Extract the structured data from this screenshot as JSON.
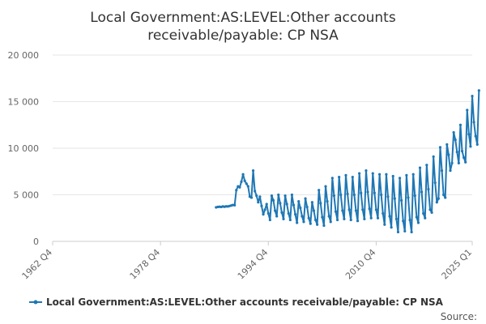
{
  "chart_data": {
    "type": "line",
    "title_lines": [
      "Local Government:AS:LEVEL:Other accounts",
      "receivable/payable: CP NSA"
    ],
    "xlabel": "",
    "ylabel": "",
    "x_tick_labels": [
      "1962 Q4",
      "1978 Q4",
      "1994 Q4",
      "2010 Q4",
      "2025 Q1"
    ],
    "y_tick_labels": [
      "0",
      "5 000",
      "10 000",
      "15 000",
      "20 000"
    ],
    "ylim": [
      0,
      20000
    ],
    "xlim": [
      "1962 Q4",
      "2025 Q1"
    ],
    "grid": "horizontal",
    "legend_position": "bottom",
    "colors": {
      "series": "#1f77b4",
      "grid": "#e6e6e6",
      "axis": "#cccccc"
    },
    "source_label": "Source:",
    "series": [
      {
        "name": "Local Government:AS:LEVEL:Other accounts receivable/payable: CP NSA",
        "points": [
          [
            "1987 Q1",
            3650
          ],
          [
            "1987 Q2",
            3700
          ],
          [
            "1987 Q3",
            3720
          ],
          [
            "1987 Q4",
            3700
          ],
          [
            "1988 Q1",
            3750
          ],
          [
            "1988 Q2",
            3720
          ],
          [
            "1988 Q3",
            3760
          ],
          [
            "1988 Q4",
            3750
          ],
          [
            "1989 Q1",
            3800
          ],
          [
            "1989 Q2",
            3850
          ],
          [
            "1989 Q3",
            3900
          ],
          [
            "1989 Q4",
            3880
          ],
          [
            "1990 Q1",
            5500
          ],
          [
            "1990 Q2",
            5900
          ],
          [
            "1990 Q3",
            5800
          ],
          [
            "1990 Q4",
            6400
          ],
          [
            "1991 Q1",
            7200
          ],
          [
            "1991 Q2",
            6500
          ],
          [
            "1991 Q3",
            6200
          ],
          [
            "1991 Q4",
            5900
          ],
          [
            "1992 Q1",
            4800
          ],
          [
            "1992 Q2",
            4700
          ],
          [
            "1992 Q3",
            7600
          ],
          [
            "1992 Q4",
            5400
          ],
          [
            "1993 Q1",
            4900
          ],
          [
            "1993 Q2",
            4200
          ],
          [
            "1993 Q3",
            4800
          ],
          [
            "1993 Q4",
            3800
          ],
          [
            "1994 Q1",
            2900
          ],
          [
            "1994 Q2",
            3400
          ],
          [
            "1994 Q3",
            4000
          ],
          [
            "1994 Q4",
            3000
          ],
          [
            "1995 Q1",
            2300
          ],
          [
            "1995 Q2",
            4900
          ],
          [
            "1995 Q3",
            4400
          ],
          [
            "1995 Q4",
            3300
          ],
          [
            "1996 Q1",
            2700
          ],
          [
            "1996 Q2",
            5000
          ],
          [
            "1996 Q3",
            4100
          ],
          [
            "1996 Q4",
            3100
          ],
          [
            "1997 Q1",
            2400
          ],
          [
            "1997 Q2",
            4900
          ],
          [
            "1997 Q3",
            4000
          ],
          [
            "1997 Q4",
            3000
          ],
          [
            "1998 Q1",
            2300
          ],
          [
            "1998 Q2",
            5000
          ],
          [
            "1998 Q3",
            3900
          ],
          [
            "1998 Q4",
            2900
          ],
          [
            "1999 Q1",
            2000
          ],
          [
            "1999 Q2",
            4300
          ],
          [
            "1999 Q3",
            3600
          ],
          [
            "1999 Q4",
            2700
          ],
          [
            "2000 Q1",
            2100
          ],
          [
            "2000 Q2",
            4600
          ],
          [
            "2000 Q3",
            3700
          ],
          [
            "2000 Q4",
            2500
          ],
          [
            "2001 Q1",
            1900
          ],
          [
            "2001 Q2",
            4200
          ],
          [
            "2001 Q3",
            3300
          ],
          [
            "2001 Q4",
            2300
          ],
          [
            "2002 Q1",
            1800
          ],
          [
            "2002 Q2",
            5500
          ],
          [
            "2002 Q3",
            4100
          ],
          [
            "2002 Q4",
            2600
          ],
          [
            "2003 Q1",
            1700
          ],
          [
            "2003 Q2",
            5900
          ],
          [
            "2003 Q3",
            4300
          ],
          [
            "2003 Q4",
            2700
          ],
          [
            "2004 Q1",
            2100
          ],
          [
            "2004 Q2",
            6800
          ],
          [
            "2004 Q3",
            4900
          ],
          [
            "2004 Q4",
            3200
          ],
          [
            "2005 Q1",
            2300
          ],
          [
            "2005 Q2",
            6900
          ],
          [
            "2005 Q3",
            5000
          ],
          [
            "2005 Q4",
            3300
          ],
          [
            "2006 Q1",
            2400
          ],
          [
            "2006 Q2",
            7100
          ],
          [
            "2006 Q3",
            5100
          ],
          [
            "2006 Q4",
            3400
          ],
          [
            "2007 Q1",
            2300
          ],
          [
            "2007 Q2",
            6900
          ],
          [
            "2007 Q3",
            5000
          ],
          [
            "2007 Q4",
            3300
          ],
          [
            "2008 Q1",
            2200
          ],
          [
            "2008 Q2",
            7300
          ],
          [
            "2008 Q3",
            5200
          ],
          [
            "2008 Q4",
            3400
          ],
          [
            "2009 Q1",
            2400
          ],
          [
            "2009 Q2",
            7600
          ],
          [
            "2009 Q3",
            5300
          ],
          [
            "2009 Q4",
            3500
          ],
          [
            "2010 Q1",
            2500
          ],
          [
            "2010 Q2",
            7300
          ],
          [
            "2010 Q3",
            5200
          ],
          [
            "2010 Q4",
            3400
          ],
          [
            "2011 Q1",
            2500
          ],
          [
            "2011 Q2",
            7200
          ],
          [
            "2011 Q3",
            5000
          ],
          [
            "2011 Q4",
            3000
          ],
          [
            "2012 Q1",
            1800
          ],
          [
            "2012 Q2",
            7200
          ],
          [
            "2012 Q3",
            4800
          ],
          [
            "2012 Q4",
            2700
          ],
          [
            "2013 Q1",
            1500
          ],
          [
            "2013 Q2",
            7000
          ],
          [
            "2013 Q3",
            4600
          ],
          [
            "2013 Q4",
            2400
          ],
          [
            "2014 Q1",
            1000
          ],
          [
            "2014 Q2",
            6800
          ],
          [
            "2014 Q3",
            4400
          ],
          [
            "2014 Q4",
            2200
          ],
          [
            "2015 Q1",
            1100
          ],
          [
            "2015 Q2",
            7100
          ],
          [
            "2015 Q3",
            4700
          ],
          [
            "2015 Q4",
            2300
          ],
          [
            "2016 Q1",
            1000
          ],
          [
            "2016 Q2",
            7200
          ],
          [
            "2016 Q3",
            4900
          ],
          [
            "2016 Q4",
            2600
          ],
          [
            "2017 Q1",
            2000
          ],
          [
            "2017 Q2",
            7900
          ],
          [
            "2017 Q3",
            5300
          ],
          [
            "2017 Q4",
            3000
          ],
          [
            "2018 Q1",
            2500
          ],
          [
            "2018 Q2",
            8200
          ],
          [
            "2018 Q3",
            5600
          ],
          [
            "2018 Q4",
            3400
          ],
          [
            "2019 Q1",
            3100
          ],
          [
            "2019 Q2",
            9100
          ],
          [
            "2019 Q3",
            6300
          ],
          [
            "2019 Q4",
            4200
          ],
          [
            "2020 Q1",
            4600
          ],
          [
            "2020 Q2",
            10100
          ],
          [
            "2020 Q3",
            7600
          ],
          [
            "2020 Q4",
            5000
          ],
          [
            "2021 Q1",
            4700
          ],
          [
            "2021 Q2",
            10400
          ],
          [
            "2021 Q3",
            9300
          ],
          [
            "2021 Q4",
            7600
          ],
          [
            "2022 Q1",
            8400
          ],
          [
            "2022 Q2",
            11700
          ],
          [
            "2022 Q3",
            10900
          ],
          [
            "2022 Q4",
            9600
          ],
          [
            "2023 Q1",
            8400
          ],
          [
            "2023 Q2",
            12500
          ],
          [
            "2023 Q3",
            9700
          ],
          [
            "2023 Q4",
            9000
          ],
          [
            "2024 Q1",
            8500
          ],
          [
            "2024 Q2",
            14100
          ],
          [
            "2024 Q3",
            11500
          ],
          [
            "2024 Q4",
            10200
          ],
          [
            "2025 Q1",
            15600
          ],
          [
            "2025 Q2",
            12800
          ],
          [
            "2025 Q3",
            11300
          ],
          [
            "2025 Q4",
            10400
          ],
          [
            "2026 Q1",
            16200
          ]
        ]
      }
    ]
  }
}
